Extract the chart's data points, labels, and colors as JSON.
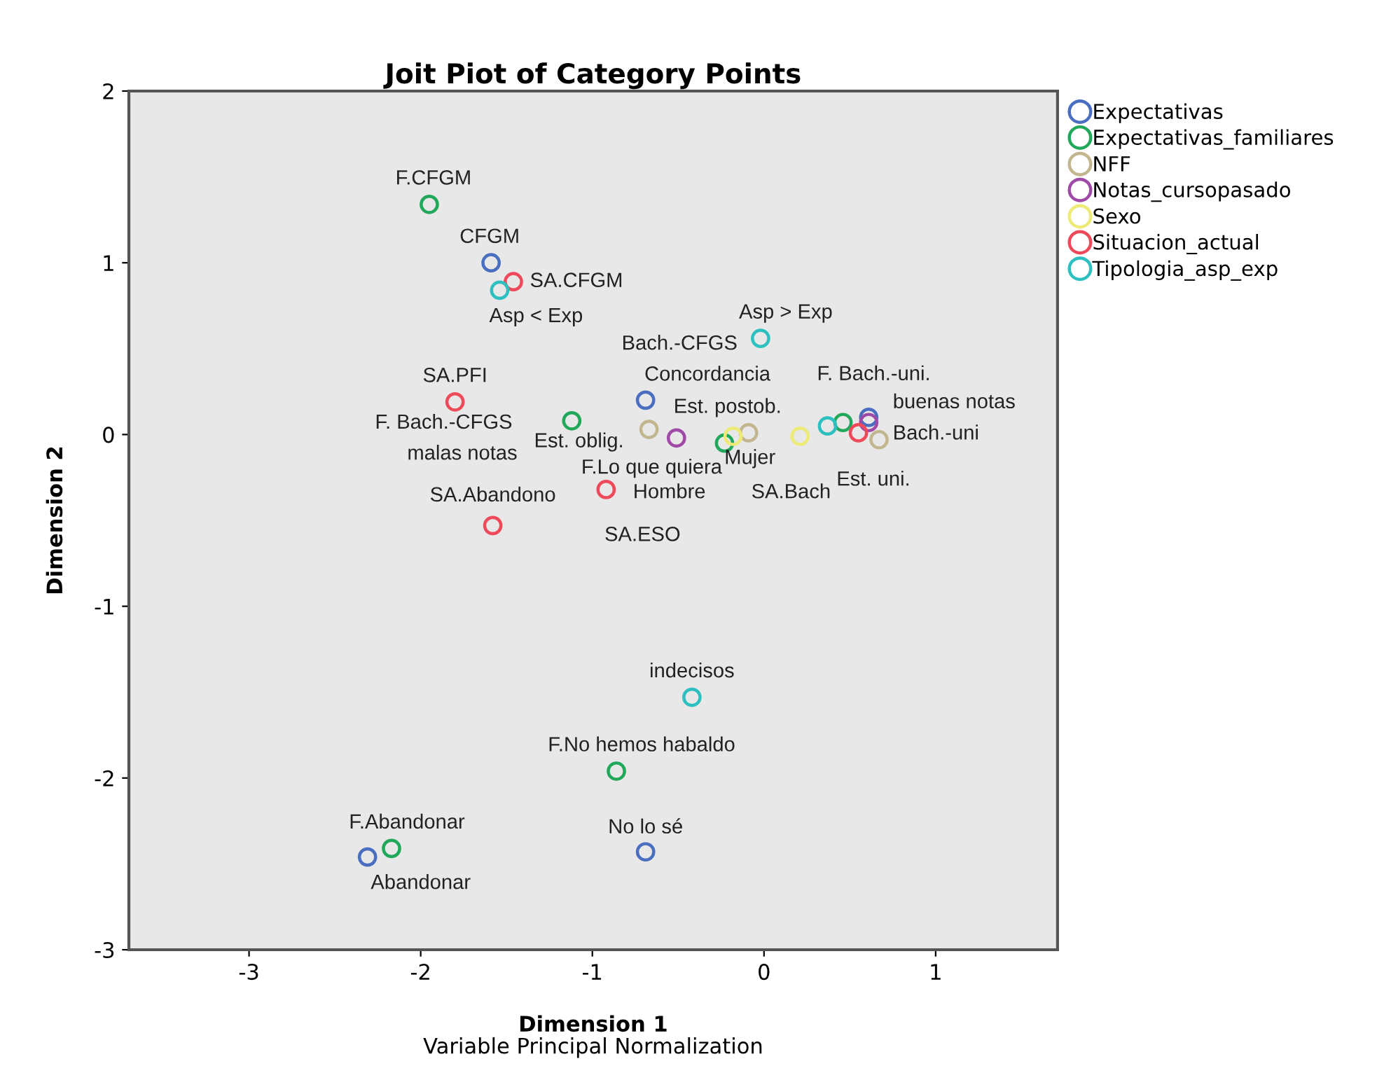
{
  "chart_data": {
    "type": "scatter",
    "title": "Joit Piot of Category Points",
    "xlabel": "Dimension 1",
    "ylabel": "Dimension 2",
    "xlim": [
      -3.7,
      1.71
    ],
    "ylim": [
      -3,
      2
    ],
    "xticks": [
      -3,
      -2,
      -1,
      0,
      1
    ],
    "yticks": [
      -3,
      -2,
      -1,
      0,
      1,
      2
    ],
    "grid": false,
    "legend": "top right",
    "marker": "circle",
    "series": [
      {
        "name": "Expectativas",
        "color": "#4a6fc0",
        "x": [
          -1.59,
          -0.69,
          0.61,
          -0.69,
          -2.31
        ],
        "values": [
          1.0,
          0.2,
          0.1,
          -2.43,
          -2.46
        ]
      },
      {
        "name": "Expectativas_familiares",
        "color": "#22a85a",
        "x": [
          -1.95,
          -1.12,
          -0.23,
          0.46,
          -0.86,
          -2.17
        ],
        "values": [
          1.34,
          0.08,
          -0.05,
          0.07,
          -1.96,
          -2.41
        ]
      },
      {
        "name": "NFF",
        "color": "#c2b68e",
        "x": [
          -0.67,
          -0.09,
          0.67
        ],
        "values": [
          0.03,
          0.01,
          -0.03
        ]
      },
      {
        "name": "Notas_cursopasado",
        "color": "#a04aa8",
        "x": [
          -0.51,
          0.61
        ],
        "values": [
          -0.02,
          0.07
        ]
      },
      {
        "name": "Sexo",
        "color": "#eeea78",
        "x": [
          -0.18,
          0.21
        ],
        "values": [
          -0.01,
          -0.01
        ]
      },
      {
        "name": "Situacion_actual",
        "color": "#ee4a5a",
        "x": [
          -1.46,
          -1.8,
          -0.92,
          -1.58,
          0.55
        ],
        "values": [
          0.89,
          0.19,
          -0.32,
          -0.53,
          0.01
        ]
      },
      {
        "name": "Tipologia_asp_exp",
        "color": "#2ec0c0",
        "x": [
          -1.54,
          -0.02,
          0.37,
          -0.42
        ],
        "values": [
          0.84,
          0.56,
          0.05,
          -1.53
        ]
      }
    ],
    "annotations": [
      {
        "text": "F.CFGM",
        "x": -1.95,
        "y": 1.34
      },
      {
        "text": "CFGM",
        "x": -1.59,
        "y": 1.0
      },
      {
        "text": "SA.CFGM",
        "x": -1.46,
        "y": 0.89
      },
      {
        "text": "Asp < Exp",
        "x": -1.54,
        "y": 0.84
      },
      {
        "text": "Asp > Exp",
        "x": -0.02,
        "y": 0.56
      },
      "Bach.-CFGS",
      "Concordancia",
      {
        "text": "F. Bach.-uni.",
        "x": 0.46,
        "y": 0.07
      },
      {
        "text": "SA.PFI",
        "x": -1.8,
        "y": 0.19
      },
      {
        "text": "buenas notas",
        "x": 0.61,
        "y": 0.07
      },
      {
        "text": "Est. postob.",
        "x": -0.09,
        "y": 0.01
      },
      "F. Bach.-CFGS",
      {
        "text": "Bach.-uni",
        "x": 0.61,
        "y": 0.1
      },
      {
        "text": "Est. oblig.",
        "x": -0.67,
        "y": 0.03
      },
      "malas notas",
      {
        "text": "F.Lo que quiera",
        "x": -0.23,
        "y": -0.05
      },
      {
        "text": "Mujer",
        "x": -0.18,
        "y": -0.01
      },
      {
        "text": "SA.Abandono",
        "x": -1.58,
        "y": -0.53
      },
      {
        "text": "Est. uni.",
        "x": 0.67,
        "y": -0.03
      },
      "Hombre",
      "SA.Bach",
      {
        "text": "SA.ESO",
        "x": -0.92,
        "y": -0.32
      },
      {
        "text": "indecisos",
        "x": -0.42,
        "y": -1.53
      },
      {
        "text": "F.No hemos habaldo",
        "x": -0.86,
        "y": -1.96
      },
      {
        "text": "No lo sé",
        "x": -0.69,
        "y": -2.43
      },
      {
        "text": "F.Abandonar",
        "x": -2.17,
        "y": -2.41
      },
      {
        "text": "Abandonar",
        "x": -2.31,
        "y": -2.46
      },
      "Variable Principal Normalization"
    ]
  }
}
